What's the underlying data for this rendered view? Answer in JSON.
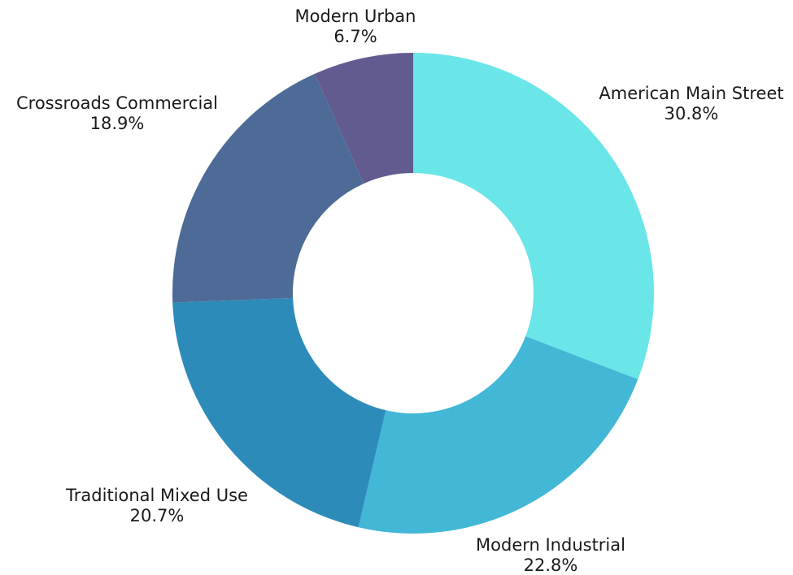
{
  "chart_data": {
    "type": "pie",
    "variant": "donut",
    "title": "",
    "series": [
      {
        "slices": [
          {
            "label": "American Main Street",
            "value": 30.8,
            "display": "30.8%",
            "color": "#6ae5e8"
          },
          {
            "label": "Modern Industrial",
            "value": 22.8,
            "display": "22.8%",
            "color": "#43b7d6"
          },
          {
            "label": "Traditional Mixed Use",
            "value": 20.7,
            "display": "20.7%",
            "color": "#2d8bba"
          },
          {
            "label": "Crossroads Commercial",
            "value": 18.9,
            "display": "18.9%",
            "color": "#4e6b97"
          },
          {
            "label": "Modern Urban",
            "value": 6.7,
            "display": "6.7%",
            "color": "#625b8f"
          }
        ]
      }
    ],
    "start_angle": "12 o'clock",
    "direction": "clockwise",
    "labels": "outside each slice, name above percentage"
  }
}
